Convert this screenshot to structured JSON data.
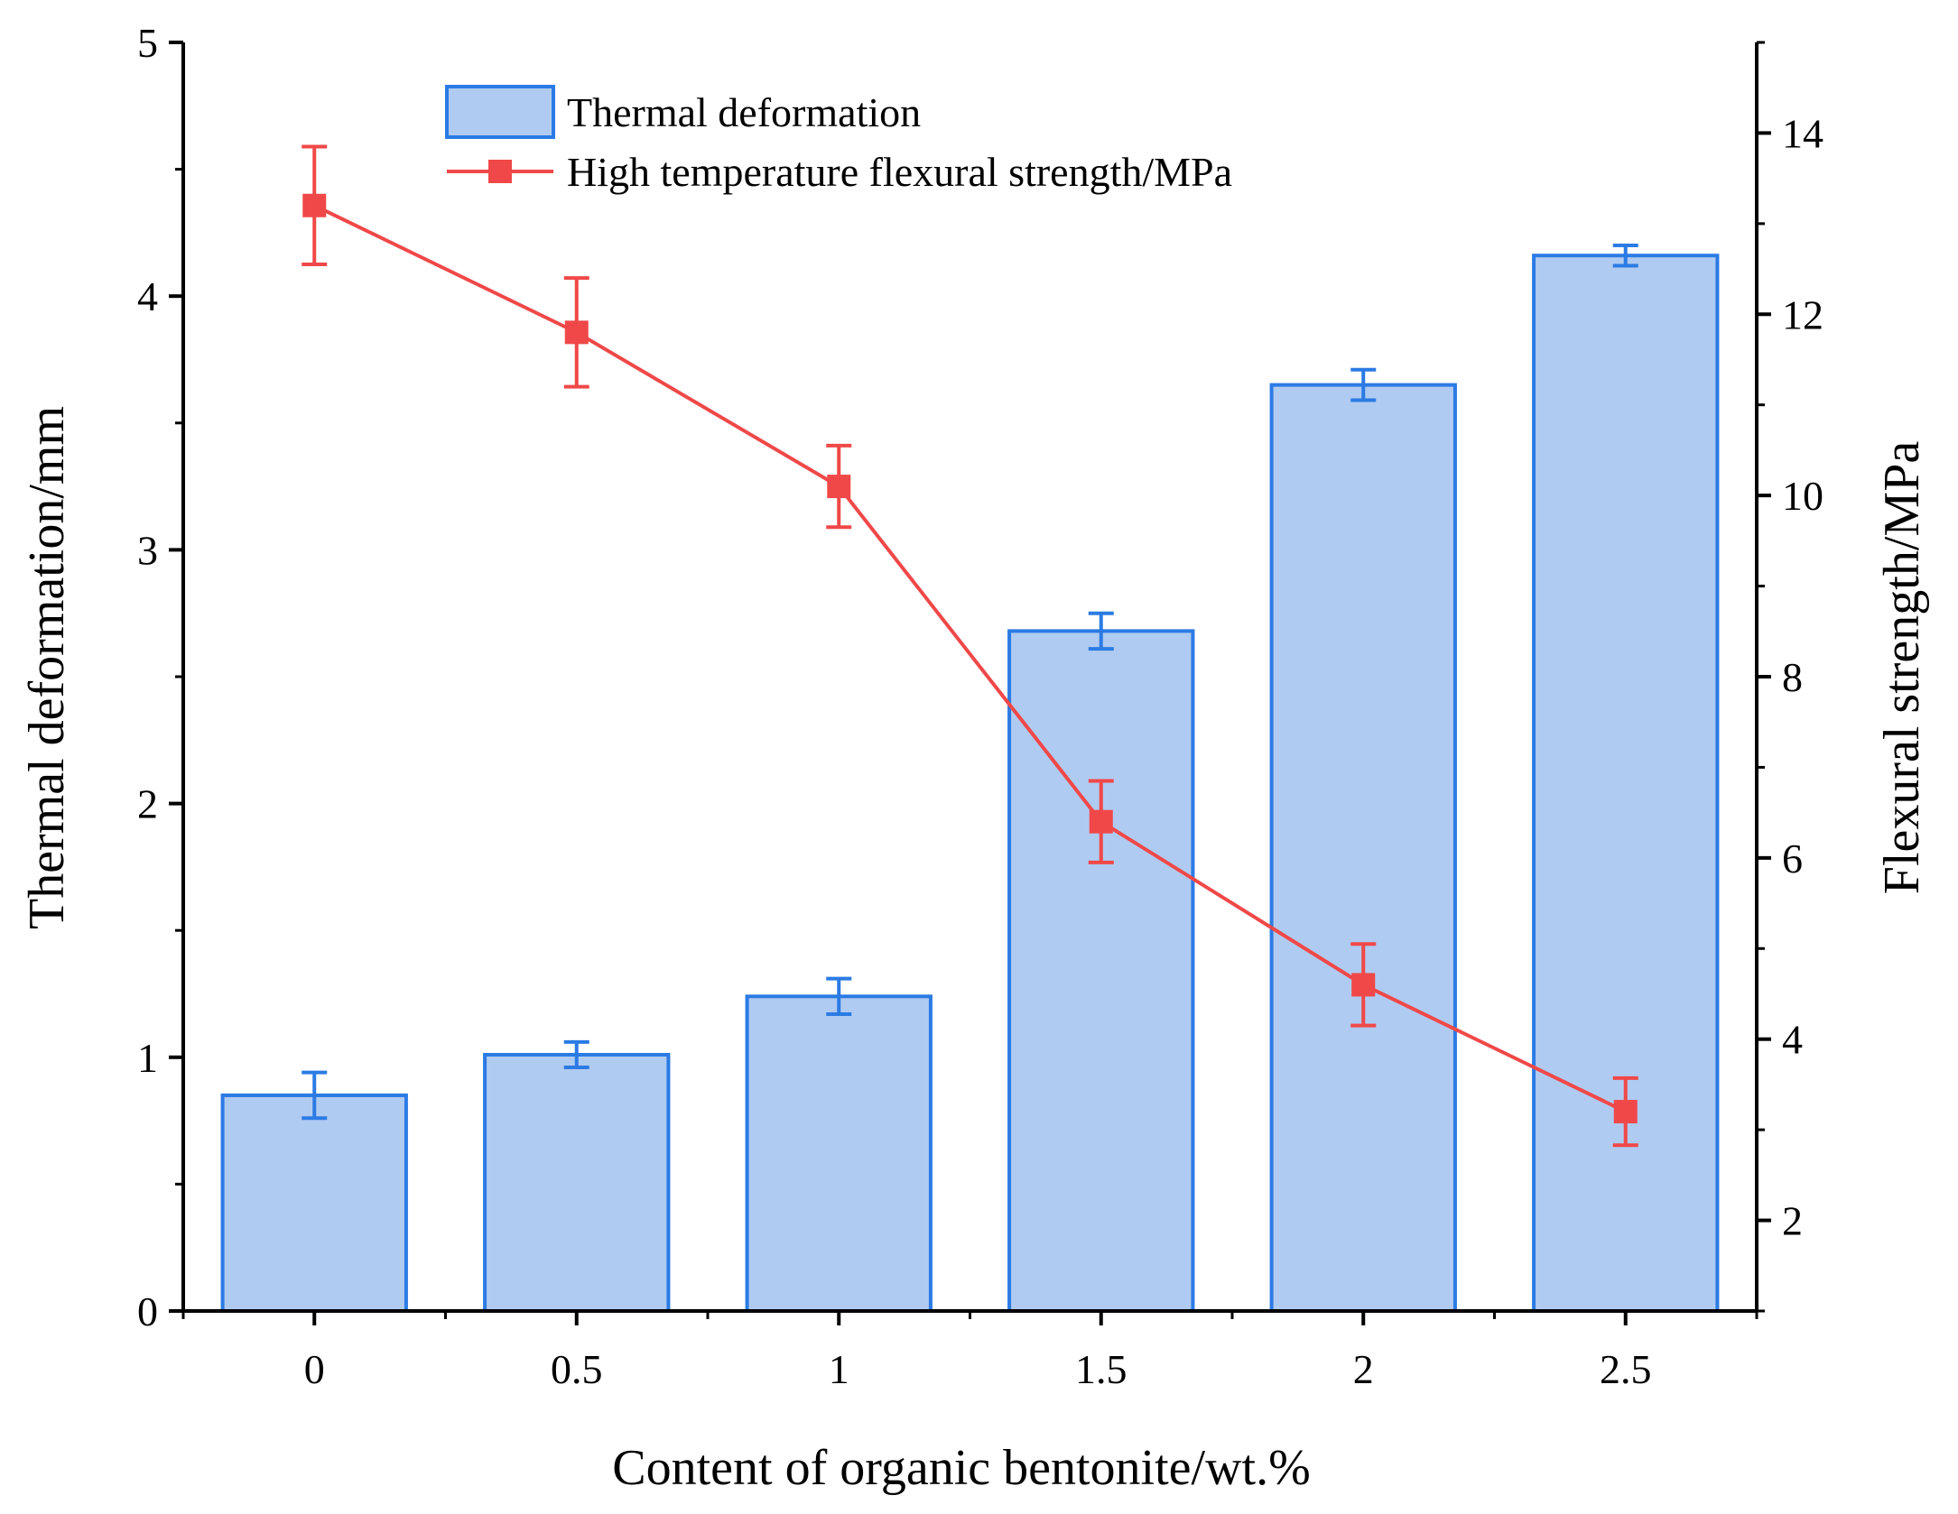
{
  "chart_data": {
    "type": "bar+line",
    "categories": [
      "0",
      "0.5",
      "1",
      "1.5",
      "2",
      "2.5"
    ],
    "x": [
      0,
      0.5,
      1,
      1.5,
      2,
      2.5
    ],
    "xlabel": "Content of organic bentonite/wt.%",
    "xlim": [
      -0.25,
      2.75
    ],
    "series": [
      {
        "name": "Thermal deformation",
        "type": "bar",
        "axis": "left",
        "values": [
          0.85,
          1.01,
          1.24,
          2.68,
          3.65,
          4.16
        ],
        "errors": [
          0.09,
          0.05,
          0.07,
          0.07,
          0.06,
          0.04
        ]
      },
      {
        "name": "High temperature flexural strength/MPa",
        "type": "line",
        "axis": "right",
        "values": [
          13.2,
          11.8,
          10.1,
          6.4,
          4.6,
          3.2
        ],
        "errors": [
          0.65,
          0.6,
          0.45,
          0.45,
          0.45,
          0.37
        ]
      }
    ],
    "left_axis": {
      "label": "Thermal deformation/mm",
      "ylim": [
        0,
        5
      ],
      "ticks": [
        0,
        1,
        2,
        3,
        4,
        5
      ],
      "tick_labels": [
        "0",
        "1",
        "2",
        "3",
        "4",
        "5"
      ]
    },
    "right_axis": {
      "label": "Flexural strength/MPa",
      "ylim": [
        1,
        15
      ],
      "ticks": [
        2,
        4,
        6,
        8,
        10,
        12,
        14
      ],
      "tick_labels": [
        "2",
        "4",
        "6",
        "8",
        "10",
        "12",
        "14"
      ]
    },
    "legend_position": "top-center",
    "colors": {
      "bar_fill": "#b0cbf1",
      "bar_edge": "#2b7be4",
      "line": "#f04848",
      "axis": "#000000"
    }
  }
}
